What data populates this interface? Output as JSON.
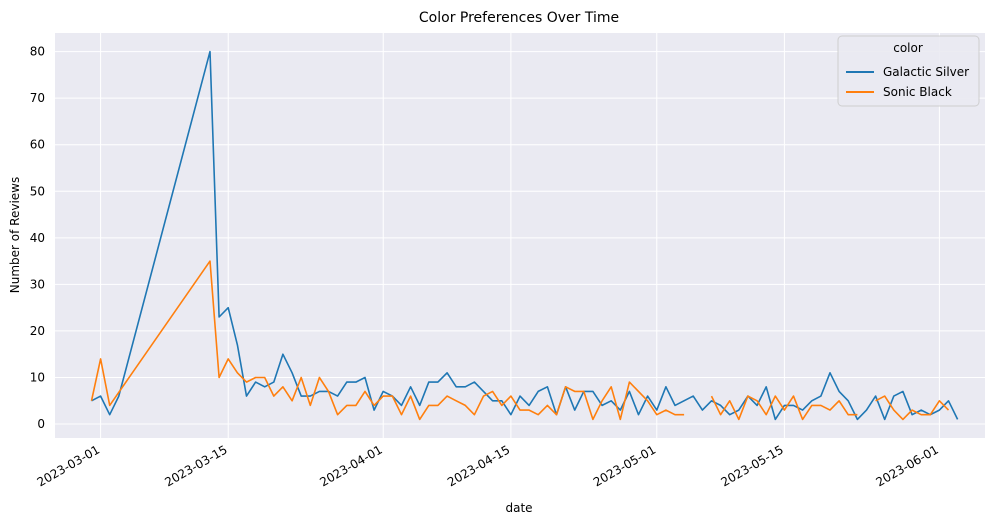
{
  "chart_data": {
    "type": "line",
    "title": "Color Preferences Over Time",
    "xlabel": "date",
    "ylabel": "Number of Reviews",
    "x_tick_labels": [
      "2023-03-01",
      "2023-03-15",
      "2023-04-01",
      "2023-04-15",
      "2023-05-01",
      "2023-05-15",
      "2023-06-01"
    ],
    "x_range": [
      "2023-02-24",
      "2023-06-06"
    ],
    "ylim": [
      -3,
      84
    ],
    "y_ticks": [
      0,
      10,
      20,
      30,
      40,
      50,
      60,
      70,
      80
    ],
    "grid": true,
    "legend_title": "color",
    "legend_position": "top-right",
    "series": [
      {
        "name": "Galactic Silver",
        "color": "#1f77b4",
        "points": [
          [
            "2023-02-28",
            5
          ],
          [
            "2023-03-01",
            6
          ],
          [
            "2023-03-02",
            2
          ],
          [
            "2023-03-03",
            6
          ],
          [
            "2023-03-13",
            80
          ],
          [
            "2023-03-14",
            23
          ],
          [
            "2023-03-15",
            25
          ],
          [
            "2023-03-16",
            17
          ],
          [
            "2023-03-17",
            6
          ],
          [
            "2023-03-18",
            9
          ],
          [
            "2023-03-19",
            8
          ],
          [
            "2023-03-20",
            9
          ],
          [
            "2023-03-21",
            15
          ],
          [
            "2023-03-22",
            11
          ],
          [
            "2023-03-23",
            6
          ],
          [
            "2023-03-24",
            6
          ],
          [
            "2023-03-25",
            7
          ],
          [
            "2023-03-26",
            7
          ],
          [
            "2023-03-27",
            6
          ],
          [
            "2023-03-28",
            9
          ],
          [
            "2023-03-29",
            9
          ],
          [
            "2023-03-30",
            10
          ],
          [
            "2023-03-31",
            3
          ],
          [
            "2023-04-01",
            7
          ],
          [
            "2023-04-02",
            6
          ],
          [
            "2023-04-03",
            4
          ],
          [
            "2023-04-04",
            8
          ],
          [
            "2023-04-05",
            4
          ],
          [
            "2023-04-06",
            9
          ],
          [
            "2023-04-07",
            9
          ],
          [
            "2023-04-08",
            11
          ],
          [
            "2023-04-09",
            8
          ],
          [
            "2023-04-10",
            8
          ],
          [
            "2023-04-11",
            9
          ],
          [
            "2023-04-12",
            7
          ],
          [
            "2023-04-13",
            5
          ],
          [
            "2023-04-14",
            5
          ],
          [
            "2023-04-15",
            2
          ],
          [
            "2023-04-16",
            6
          ],
          [
            "2023-04-17",
            4
          ],
          [
            "2023-04-18",
            7
          ],
          [
            "2023-04-19",
            8
          ],
          [
            "2023-04-20",
            2
          ],
          [
            "2023-04-21",
            8
          ],
          [
            "2023-04-22",
            3
          ],
          [
            "2023-04-23",
            7
          ],
          [
            "2023-04-24",
            7
          ],
          [
            "2023-04-25",
            4
          ],
          [
            "2023-04-26",
            5
          ],
          [
            "2023-04-27",
            3
          ],
          [
            "2023-04-28",
            7
          ],
          [
            "2023-04-29",
            2
          ],
          [
            "2023-04-30",
            6
          ],
          [
            "2023-05-01",
            3
          ],
          [
            "2023-05-02",
            8
          ],
          [
            "2023-05-03",
            4
          ],
          [
            "2023-05-05",
            6
          ],
          [
            "2023-05-06",
            3
          ],
          [
            "2023-05-07",
            5
          ],
          [
            "2023-05-08",
            4
          ],
          [
            "2023-05-09",
            2
          ],
          [
            "2023-05-10",
            3
          ],
          [
            "2023-05-11",
            6
          ],
          [
            "2023-05-12",
            4
          ],
          [
            "2023-05-13",
            8
          ],
          [
            "2023-05-14",
            1
          ],
          [
            "2023-05-15",
            4
          ],
          [
            "2023-05-16",
            4
          ],
          [
            "2023-05-17",
            3
          ],
          [
            "2023-05-18",
            5
          ],
          [
            "2023-05-19",
            6
          ],
          [
            "2023-05-20",
            11
          ],
          [
            "2023-05-21",
            7
          ],
          [
            "2023-05-22",
            5
          ],
          [
            "2023-05-23",
            1
          ],
          [
            "2023-05-24",
            3
          ],
          [
            "2023-05-25",
            6
          ],
          [
            "2023-05-26",
            1
          ],
          [
            "2023-05-27",
            6
          ],
          [
            "2023-05-28",
            7
          ],
          [
            "2023-05-29",
            2
          ],
          [
            "2023-05-30",
            3
          ],
          [
            "2023-05-31",
            2
          ],
          [
            "2023-06-01",
            3
          ],
          [
            "2023-06-02",
            5
          ],
          [
            "2023-06-03",
            1
          ]
        ]
      },
      {
        "name": "Sonic Black",
        "color": "#ff7f0e",
        "points": [
          [
            "2023-02-28",
            5
          ],
          [
            "2023-03-01",
            14
          ],
          [
            "2023-03-02",
            4
          ],
          [
            "2023-03-13",
            35
          ],
          [
            "2023-03-14",
            10
          ],
          [
            "2023-03-15",
            14
          ],
          [
            "2023-03-16",
            11
          ],
          [
            "2023-03-17",
            9
          ],
          [
            "2023-03-18",
            10
          ],
          [
            "2023-03-19",
            10
          ],
          [
            "2023-03-20",
            6
          ],
          [
            "2023-03-21",
            8
          ],
          [
            "2023-03-22",
            5
          ],
          [
            "2023-03-23",
            10
          ],
          [
            "2023-03-24",
            4
          ],
          [
            "2023-03-25",
            10
          ],
          [
            "2023-03-26",
            7
          ],
          [
            "2023-03-27",
            2
          ],
          [
            "2023-03-28",
            4
          ],
          [
            "2023-03-29",
            4
          ],
          [
            "2023-03-30",
            7
          ],
          [
            "2023-03-31",
            4
          ],
          [
            "2023-04-01",
            6
          ],
          [
            "2023-04-02",
            6
          ],
          [
            "2023-04-03",
            2
          ],
          [
            "2023-04-04",
            6
          ],
          [
            "2023-04-05",
            1
          ],
          [
            "2023-04-06",
            4
          ],
          [
            "2023-04-07",
            4
          ],
          [
            "2023-04-08",
            6
          ],
          [
            "2023-04-09",
            5
          ],
          [
            "2023-04-10",
            4
          ],
          [
            "2023-04-11",
            2
          ],
          [
            "2023-04-12",
            6
          ],
          [
            "2023-04-13",
            7
          ],
          [
            "2023-04-14",
            4
          ],
          [
            "2023-04-15",
            6
          ],
          [
            "2023-04-16",
            3
          ],
          [
            "2023-04-17",
            3
          ],
          [
            "2023-04-18",
            2
          ],
          [
            "2023-04-19",
            4
          ],
          [
            "2023-04-20",
            2
          ],
          [
            "2023-04-21",
            8
          ],
          [
            "2023-04-22",
            7
          ],
          [
            "2023-04-23",
            7
          ],
          [
            "2023-04-24",
            1
          ],
          [
            "2023-04-25",
            5
          ],
          [
            "2023-04-26",
            8
          ],
          [
            "2023-04-27",
            1
          ],
          [
            "2023-04-28",
            9
          ],
          [
            "2023-04-29",
            7
          ],
          [
            "2023-04-30",
            5
          ],
          [
            "2023-05-01",
            2
          ],
          [
            "2023-05-02",
            3
          ],
          [
            "2023-05-03",
            2
          ],
          [
            "2023-05-04",
            2
          ],
          null,
          [
            "2023-05-07",
            6
          ],
          [
            "2023-05-08",
            2
          ],
          [
            "2023-05-09",
            5
          ],
          [
            "2023-05-10",
            1
          ],
          [
            "2023-05-11",
            6
          ],
          [
            "2023-05-12",
            5
          ],
          [
            "2023-05-13",
            2
          ],
          [
            "2023-05-14",
            6
          ],
          [
            "2023-05-15",
            3
          ],
          [
            "2023-05-16",
            6
          ],
          [
            "2023-05-17",
            1
          ],
          [
            "2023-05-18",
            4
          ],
          [
            "2023-05-19",
            4
          ],
          [
            "2023-05-20",
            3
          ],
          [
            "2023-05-21",
            5
          ],
          [
            "2023-05-22",
            2
          ],
          [
            "2023-05-23",
            2
          ],
          null,
          [
            "2023-05-25",
            5
          ],
          [
            "2023-05-26",
            6
          ],
          [
            "2023-05-27",
            3
          ],
          [
            "2023-05-28",
            1
          ],
          [
            "2023-05-29",
            3
          ],
          [
            "2023-05-30",
            2
          ],
          [
            "2023-05-31",
            2
          ],
          [
            "2023-06-01",
            5
          ],
          [
            "2023-06-02",
            3
          ]
        ]
      }
    ]
  }
}
